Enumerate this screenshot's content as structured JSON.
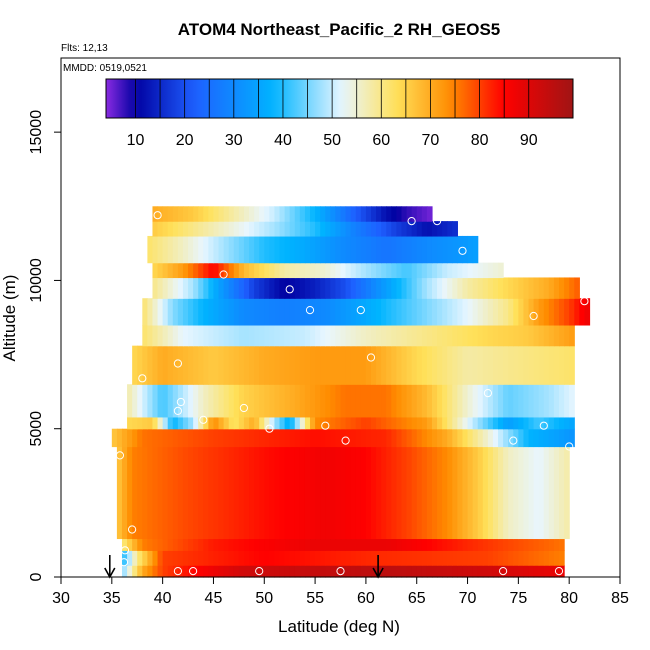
{
  "chart_data": {
    "type": "heatmap",
    "title": "ATOM4 Northeast_Pacific_2 RH_GEOS5",
    "flights_text": "Flts: 12,13",
    "dates_text": "MMDD: 0519,0521",
    "xlabel": "Latitude (deg N)",
    "ylabel": "Altitude (m)",
    "xlim": [
      30,
      85
    ],
    "ylim": [
      0,
      17500
    ],
    "xticks": [
      "30",
      "35",
      "40",
      "45",
      "50",
      "55",
      "60",
      "65",
      "70",
      "75",
      "80",
      "85"
    ],
    "xtick_values": [
      30,
      35,
      40,
      45,
      50,
      55,
      60,
      65,
      70,
      75,
      80,
      85
    ],
    "yticks": [
      "0",
      "5000",
      "10000",
      "15000"
    ],
    "ytick_values": [
      0,
      5000,
      10000,
      15000
    ],
    "colorbar": {
      "range": [
        4,
        99
      ],
      "ticks": [
        "10",
        "20",
        "30",
        "40",
        "50",
        "60",
        "70",
        "80",
        "90"
      ],
      "tick_values": [
        10,
        20,
        30,
        40,
        50,
        60,
        70,
        80,
        90
      ]
    },
    "colors": {
      "violet": "#8a2be2",
      "navy": "#0000a0",
      "blue": "#1e5fff",
      "sky": "#00b4ff",
      "pale": "#e8f6ff",
      "yellow": "#ffe15a",
      "orange": "#ff8c00",
      "red": "#ff0000",
      "darkred": "#a01414"
    },
    "layers": [
      {
        "z": [
          0,
          400
        ],
        "lat": [
          36.0,
          79.5
        ],
        "rh_by_lat": [
          [
            36,
            45
          ],
          [
            38,
            70
          ],
          [
            40,
            80
          ],
          [
            48,
            92
          ],
          [
            62,
            95
          ],
          [
            72,
            92
          ],
          [
            79.5,
            88
          ]
        ]
      },
      {
        "z": [
          400,
          900
        ],
        "lat": [
          36.0,
          79.5
        ],
        "rh_by_lat": [
          [
            36,
            38
          ],
          [
            37.5,
            60
          ],
          [
            40,
            80
          ],
          [
            50,
            85
          ],
          [
            60,
            82
          ],
          [
            72,
            80
          ],
          [
            79.5,
            75
          ]
        ]
      },
      {
        "z": [
          900,
          1300
        ],
        "lat": [
          36.0,
          79.5
        ],
        "rh_by_lat": [
          [
            36,
            60
          ],
          [
            38,
            75
          ],
          [
            45,
            83
          ],
          [
            55,
            88
          ],
          [
            62,
            88
          ],
          [
            70,
            82
          ],
          [
            79.5,
            76
          ]
        ]
      },
      {
        "z": [
          1300,
          4400
        ],
        "lat": [
          35.5,
          80.0
        ],
        "rh_by_lat": [
          [
            35.5,
            66
          ],
          [
            37,
            75
          ],
          [
            42,
            79
          ],
          [
            50,
            84
          ],
          [
            56,
            87
          ],
          [
            60,
            85
          ],
          [
            64,
            80
          ],
          [
            68,
            74
          ],
          [
            71,
            66
          ],
          [
            74,
            56
          ],
          [
            77,
            52
          ],
          [
            80,
            58
          ]
        ]
      },
      {
        "z": [
          4400,
          5000
        ],
        "lat": [
          35.0,
          80.5
        ],
        "rh_by_lat": [
          [
            35,
            66
          ],
          [
            38,
            76
          ],
          [
            45,
            80
          ],
          [
            55,
            84
          ],
          [
            62,
            82
          ],
          [
            68,
            70
          ],
          [
            72,
            55
          ],
          [
            76,
            38
          ],
          [
            80.5,
            32
          ]
        ]
      },
      {
        "z": [
          5000,
          5400
        ],
        "lat": [
          36.5,
          80.5
        ],
        "rh_by_lat": [
          [
            36.5,
            64
          ],
          [
            39,
            66
          ],
          [
            41,
            38
          ],
          [
            43,
            48
          ],
          [
            45,
            74
          ],
          [
            47,
            62
          ],
          [
            49,
            70
          ],
          [
            51,
            48
          ],
          [
            52.5,
            36
          ],
          [
            55,
            74
          ],
          [
            60,
            80
          ],
          [
            66,
            72
          ],
          [
            70,
            52
          ],
          [
            74,
            34
          ],
          [
            77,
            42
          ],
          [
            80.5,
            35
          ]
        ]
      },
      {
        "z": [
          5400,
          6500
        ],
        "lat": [
          36.5,
          80.5
        ],
        "rh_by_lat": [
          [
            36.5,
            58
          ],
          [
            40,
            42
          ],
          [
            44,
            56
          ],
          [
            48,
            65
          ],
          [
            53,
            70
          ],
          [
            58,
            76
          ],
          [
            62,
            76
          ],
          [
            66,
            68
          ],
          [
            70,
            55
          ],
          [
            74,
            44
          ],
          [
            78,
            48
          ],
          [
            80.5,
            52
          ]
        ]
      },
      {
        "z": [
          6500,
          7800
        ],
        "lat": [
          37.0,
          80.5
        ],
        "rh_by_lat": [
          [
            37,
            64
          ],
          [
            40,
            70
          ],
          [
            45,
            66
          ],
          [
            50,
            70
          ],
          [
            55,
            72
          ],
          [
            60,
            72
          ],
          [
            65,
            64
          ],
          [
            70,
            58
          ],
          [
            75,
            60
          ],
          [
            80.5,
            62
          ]
        ]
      },
      {
        "z": [
          7800,
          8500
        ],
        "lat": [
          38.0,
          80.5
        ],
        "rh_by_lat": [
          [
            38,
            62
          ],
          [
            42,
            52
          ],
          [
            48,
            48
          ],
          [
            54,
            50
          ],
          [
            60,
            56
          ],
          [
            66,
            60
          ],
          [
            72,
            64
          ],
          [
            76,
            66
          ],
          [
            80.5,
            72
          ]
        ]
      },
      {
        "z": [
          8500,
          9400
        ],
        "lat": [
          38.0,
          82.0
        ],
        "rh_by_lat": [
          [
            38,
            62
          ],
          [
            41,
            46
          ],
          [
            44,
            38
          ],
          [
            48,
            30
          ],
          [
            52,
            28
          ],
          [
            56,
            30
          ],
          [
            60,
            36
          ],
          [
            65,
            44
          ],
          [
            70,
            52
          ],
          [
            74,
            60
          ],
          [
            77,
            72
          ],
          [
            80,
            80
          ],
          [
            82,
            88
          ]
        ]
      },
      {
        "z": [
          9400,
          10100
        ],
        "lat": [
          39.0,
          81.0
        ],
        "rh_by_lat": [
          [
            39,
            60
          ],
          [
            43,
            48
          ],
          [
            46,
            32
          ],
          [
            49,
            18
          ],
          [
            52,
            10
          ],
          [
            55,
            14
          ],
          [
            58,
            20
          ],
          [
            62,
            34
          ],
          [
            66,
            48
          ],
          [
            70,
            58
          ],
          [
            74,
            64
          ],
          [
            78,
            70
          ],
          [
            81,
            78
          ]
        ]
      },
      {
        "z": [
          10100,
          10600
        ],
        "lat": [
          39.0,
          73.5
        ],
        "rh_by_lat": [
          [
            39,
            64
          ],
          [
            42,
            72
          ],
          [
            45,
            85
          ],
          [
            48,
            68
          ],
          [
            52,
            58
          ],
          [
            56,
            55
          ],
          [
            60,
            48
          ],
          [
            64,
            42
          ],
          [
            68,
            50
          ],
          [
            73.5,
            55
          ]
        ]
      },
      {
        "z": [
          10600,
          11500
        ],
        "lat": [
          38.5,
          71.0
        ],
        "rh_by_lat": [
          [
            38.5,
            62
          ],
          [
            42,
            56
          ],
          [
            46,
            48
          ],
          [
            50,
            40
          ],
          [
            54,
            36
          ],
          [
            58,
            30
          ],
          [
            62,
            26
          ],
          [
            66,
            30
          ],
          [
            71,
            34
          ]
        ]
      },
      {
        "z": [
          11500,
          12000
        ],
        "lat": [
          39.0,
          69.0
        ],
        "rh_by_lat": [
          [
            39,
            66
          ],
          [
            43,
            60
          ],
          [
            47,
            54
          ],
          [
            51,
            48
          ],
          [
            55,
            40
          ],
          [
            59,
            28
          ],
          [
            63,
            18
          ],
          [
            66,
            12
          ],
          [
            69,
            16
          ]
        ]
      },
      {
        "z": [
          12000,
          12500
        ],
        "lat": [
          39.0,
          66.5
        ],
        "rh_by_lat": [
          [
            39,
            70
          ],
          [
            43,
            66
          ],
          [
            47,
            58
          ],
          [
            51,
            50
          ],
          [
            55,
            38
          ],
          [
            59,
            22
          ],
          [
            62,
            12
          ],
          [
            64,
            8
          ],
          [
            66.5,
            5
          ]
        ]
      }
    ],
    "profile_points": [
      {
        "lat": 41.5,
        "alt": 200
      },
      {
        "lat": 43.0,
        "alt": 200
      },
      {
        "lat": 49.5,
        "alt": 200
      },
      {
        "lat": 57.5,
        "alt": 200
      },
      {
        "lat": 73.5,
        "alt": 200
      },
      {
        "lat": 79.0,
        "alt": 200
      },
      {
        "lat": 36.2,
        "alt": 500
      },
      {
        "lat": 36.3,
        "alt": 900
      },
      {
        "lat": 37.0,
        "alt": 1600
      },
      {
        "lat": 35.8,
        "alt": 4100
      },
      {
        "lat": 80.0,
        "alt": 4400
      },
      {
        "lat": 58.0,
        "alt": 4600
      },
      {
        "lat": 74.5,
        "alt": 4600
      },
      {
        "lat": 50.5,
        "alt": 5000
      },
      {
        "lat": 56.0,
        "alt": 5100
      },
      {
        "lat": 77.5,
        "alt": 5100
      },
      {
        "lat": 44.0,
        "alt": 5300
      },
      {
        "lat": 41.5,
        "alt": 5600
      },
      {
        "lat": 48.0,
        "alt": 5700
      },
      {
        "lat": 41.8,
        "alt": 5900
      },
      {
        "lat": 72.0,
        "alt": 6200
      },
      {
        "lat": 38.0,
        "alt": 6700
      },
      {
        "lat": 41.5,
        "alt": 7200
      },
      {
        "lat": 60.5,
        "alt": 7400
      },
      {
        "lat": 76.5,
        "alt": 8800
      },
      {
        "lat": 54.5,
        "alt": 9000
      },
      {
        "lat": 59.5,
        "alt": 9000
      },
      {
        "lat": 81.5,
        "alt": 9300
      },
      {
        "lat": 52.5,
        "alt": 9700
      },
      {
        "lat": 46.0,
        "alt": 10200
      },
      {
        "lat": 69.5,
        "alt": 11000
      },
      {
        "lat": 64.5,
        "alt": 12000
      },
      {
        "lat": 67.0,
        "alt": 12000
      },
      {
        "lat": 39.5,
        "alt": 12200
      }
    ],
    "arrows_lat": [
      34.8,
      61.2
    ],
    "grid": false,
    "legend": "colorbar inside plot, top"
  }
}
